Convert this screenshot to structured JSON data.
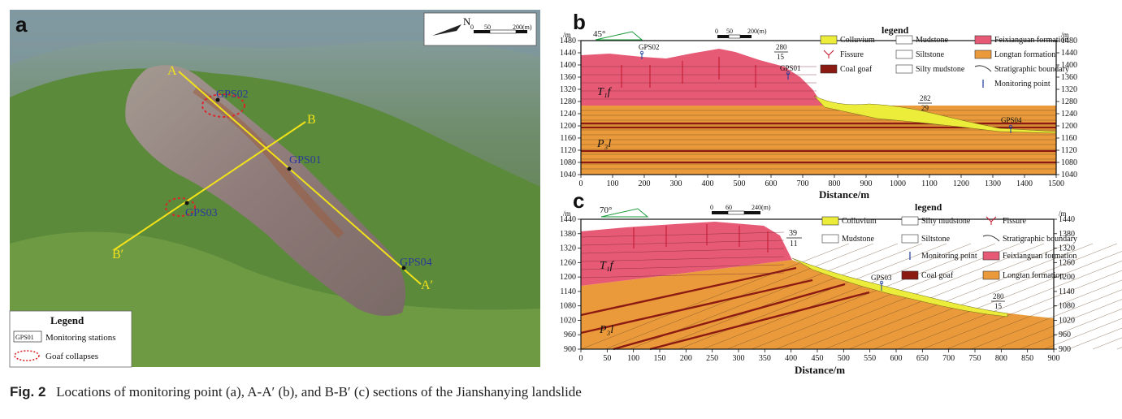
{
  "caption": {
    "label": "Fig. 2",
    "text": "Locations of monitoring point (a), A-A′ (b), and B-B′ (c) sections of the Jianshanying landslide"
  },
  "panel_a": {
    "letter": "a",
    "north": "N",
    "scale_labels": [
      "0",
      "50",
      "200(m)"
    ],
    "section_points": {
      "A": "A",
      "A_prime": "A′",
      "B": "B",
      "B_prime": "B′"
    },
    "stations": [
      "GPS02",
      "GPS01",
      "GPS03",
      "GPS04"
    ],
    "legend": {
      "title": "Legend",
      "station_symbol": "GPS01",
      "station_label": "Monitoring stations",
      "goaf_label": "Goaf collapses"
    },
    "colors": {
      "section_line": "#f2e21a",
      "goaf": "#d9262a",
      "station_text": "#2b3a9a"
    }
  },
  "panel_b": {
    "letter": "b",
    "dip_angle": "45°",
    "unit": "/m",
    "scale_labels": [
      "0",
      "50",
      "200(m)"
    ],
    "y_ticks": [
      1480,
      1440,
      1400,
      1360,
      1320,
      1280,
      1240,
      1200,
      1160,
      1120,
      1080,
      1040
    ],
    "x_ticks": [
      0,
      100,
      200,
      300,
      400,
      500,
      600,
      700,
      800,
      900,
      1000,
      1100,
      1200,
      1300,
      1400,
      1500
    ],
    "xlabel": "Distance/m",
    "formation_upper": "T₁f",
    "formation_lower": "P₃l",
    "stations": [
      "GPS02",
      "GPS01",
      "GPS04"
    ],
    "attitudes": [
      {
        "top": "280",
        "bottom": "15"
      },
      {
        "top": "282",
        "bottom": "29"
      }
    ],
    "legend": {
      "title": "legend",
      "items": [
        "Colluvium",
        "Mudstone",
        "Feixianguan formation",
        "Fissure",
        "Siltstone",
        "Longtan formation",
        "Coal goaf",
        "Silty mudstone",
        "Stratigraphic boundary",
        "Monitoring point"
      ]
    }
  },
  "panel_c": {
    "letter": "c",
    "dip_angle": "70°",
    "scale_labels": [
      "0",
      "60",
      "240(m)"
    ],
    "y_ticks": [
      1440,
      1380,
      1320,
      1260,
      1200,
      1140,
      1080,
      1020,
      960,
      900
    ],
    "x_ticks": [
      0,
      50,
      100,
      150,
      200,
      250,
      300,
      350,
      400,
      450,
      500,
      550,
      600,
      650,
      700,
      750,
      800,
      850,
      900
    ],
    "xlabel": "Distance/m",
    "formation_upper": "T₁f",
    "formation_lower": "P₃l",
    "stations": [
      "GPS03"
    ],
    "attitudes": [
      {
        "top": "39",
        "bottom": "11"
      },
      {
        "top": "280",
        "bottom": "15"
      }
    ],
    "legend": {
      "title": "legend",
      "items": [
        "Colluvium",
        "Silty mudstone",
        "Fissure",
        "Mudstone",
        "Siltstone",
        "Stratigraphic boundary",
        "Monitoring point",
        "Coal goaf",
        "Feixianguan formation",
        "Longtan formation"
      ]
    }
  },
  "colors": {
    "feixianguan": "#e75a76",
    "longtan": "#ea9a3a",
    "colluvium": "#ecec3a",
    "coal": "#8b1a12"
  }
}
